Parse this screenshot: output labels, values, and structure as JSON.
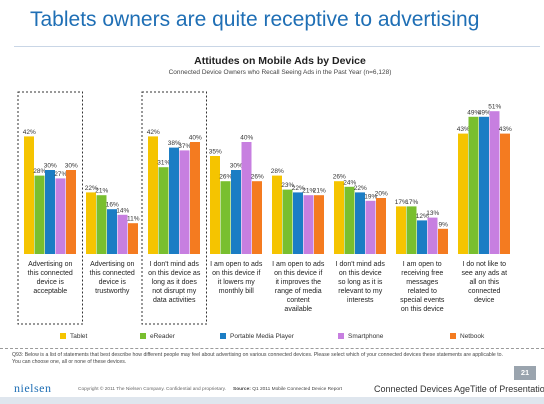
{
  "slide": {
    "title": "Tablets owners are quite receptive to advertising",
    "footnote": "Q93: Below is a list of statements that best describe how different people may feel about advertising on various connected devices. Please select which of your connected devices these statements are applicable to.  You can choose one, all or none of these devices.",
    "brand": "nielsen",
    "copyright": "Copyright © 2011 The Nielsen Company. Confidential and proprietary.",
    "source_label": "Source:",
    "source_text": "Q1 2011 Mobile Connected Device Report",
    "footer_title": "Connected Devices AgeTitle of Presentation",
    "page_number": "21"
  },
  "chart_data": {
    "type": "bar",
    "title": "Attitudes on Mobile Ads by Device",
    "subtitle": "Connected Device Owners who Recall Seeing Ads in the Past Year (n=6,128)",
    "categories": [
      "Advertising on this connected device is acceptable",
      "Advertising on this connected device is trustworthy",
      "I don't mind ads on this device as long as it does not disrupt my data activities",
      "I am open to ads on this device if it lowers my monthly bill",
      "I am open to ads on this device if it improves the range of media content available",
      "I don't mind ads on this device so long as it is relevant to my interests",
      "I am open to receiving free messages related to special events on this device",
      "I do not like to see any ads at all on this connected device"
    ],
    "category_lines": [
      [
        "Advertising on",
        "this connected",
        "device is",
        "acceptable"
      ],
      [
        "Advertising on",
        "this connected",
        "device is",
        "trustworthy"
      ],
      [
        "I don't mind ads",
        "on this device as",
        "long as it does",
        "not disrupt my",
        "data activities"
      ],
      [
        "I am open to ads",
        "on this device if",
        "it lowers my",
        "monthly bill"
      ],
      [
        "I am open to ads",
        "on this device if",
        "it improves the",
        "range of media",
        "content",
        "available"
      ],
      [
        "I don't mind ads",
        "on this device",
        "so long as it is",
        "relevant to my",
        "interests"
      ],
      [
        "I am open to",
        "receiving free",
        "messages",
        "related to",
        "special events",
        "on this  device"
      ],
      [
        "I do not like to",
        "see any ads at",
        "all on this",
        "connected",
        "device"
      ]
    ],
    "series": [
      {
        "name": "Tablet",
        "color": "#f5c400",
        "values": [
          42,
          22,
          42,
          35,
          28,
          26,
          17,
          43
        ]
      },
      {
        "name": "eReader",
        "color": "#79bf2f",
        "values": [
          28,
          21,
          31,
          26,
          23,
          24,
          17,
          49
        ]
      },
      {
        "name": "Portable Media Player",
        "color": "#1b7dc4",
        "values": [
          30,
          16,
          38,
          30,
          22,
          22,
          12,
          49
        ]
      },
      {
        "name": "Smartphone",
        "color": "#c77fe0",
        "values": [
          27,
          14,
          37,
          40,
          21,
          19,
          13,
          51
        ]
      },
      {
        "name": "Netbook",
        "color": "#f47b20",
        "values": [
          30,
          11,
          40,
          26,
          21,
          20,
          9,
          43
        ]
      }
    ],
    "label_texts": [
      [
        "42%",
        "28%",
        "30%",
        "27%",
        "30%"
      ],
      [
        "22%",
        "21%",
        "16%",
        "14%",
        "11%"
      ],
      [
        "42%",
        "31%",
        "38%",
        "37%",
        "40%"
      ],
      [
        "35%",
        "26%",
        "30%",
        "40%",
        "26%"
      ],
      [
        "28%",
        "23%",
        "22%",
        "21%",
        "21%"
      ],
      [
        "26%",
        "24%",
        "22%",
        "19%",
        "20%"
      ],
      [
        "17%",
        "17%",
        "12%",
        "13%",
        "9%"
      ],
      [
        "43%",
        "49%",
        "49%",
        "51%",
        "43%"
      ]
    ],
    "highlighted_categories": [
      0,
      2
    ],
    "ylim": [
      0,
      55
    ],
    "grid": false,
    "legend_position": "bottom"
  }
}
